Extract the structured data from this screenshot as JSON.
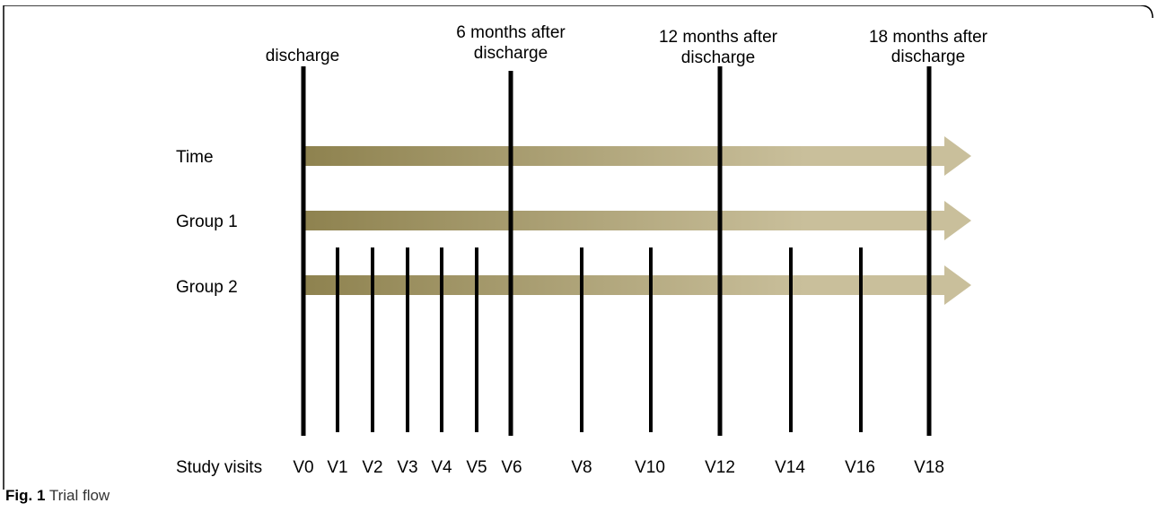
{
  "figure": {
    "milestones": [
      {
        "line1": "discharge",
        "line2": ""
      },
      {
        "line1": "6 months after",
        "line2": "discharge"
      },
      {
        "line1": "12 months after",
        "line2": "discharge"
      },
      {
        "line1": "18 months after",
        "line2": "discharge"
      }
    ],
    "rows": [
      "Time",
      "Group 1",
      "Group 2"
    ],
    "visits_label": "Study visits",
    "visits": [
      "V0",
      "V1",
      "V2",
      "V3",
      "V4",
      "V5",
      "V6",
      "V8",
      "V10",
      "V12",
      "V14",
      "V16",
      "V18"
    ],
    "arrow_colors": {
      "start": "#8e824f",
      "end": "#c9bf9b"
    }
  },
  "caption": {
    "label": "Fig. 1",
    "text": "Trial flow"
  }
}
